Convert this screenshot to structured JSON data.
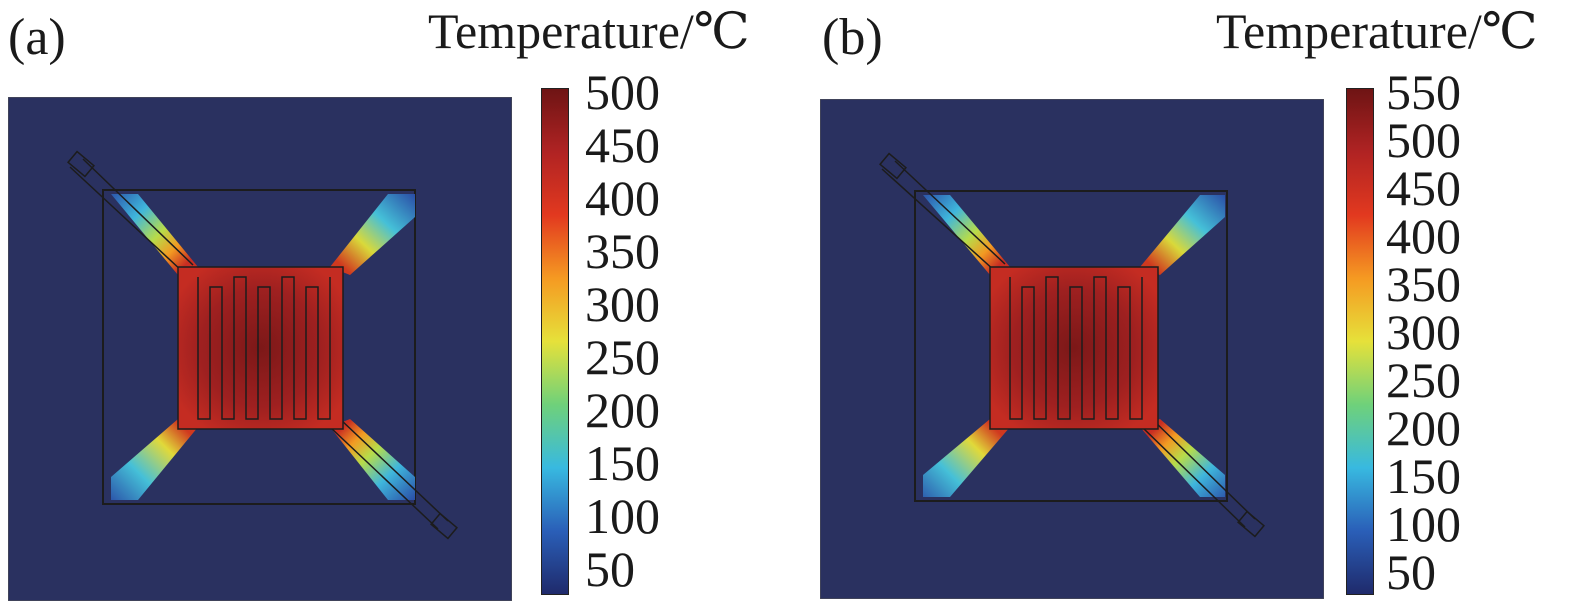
{
  "panels": [
    {
      "label": "(a)",
      "colorbar_title": "Temperature/℃",
      "colorbar_ticks": [
        "500",
        "450",
        "400",
        "350",
        "300",
        "250",
        "200",
        "150",
        "100",
        "50"
      ],
      "range": [
        30,
        510
      ]
    },
    {
      "label": "(b)",
      "colorbar_title": "Temperature/℃",
      "colorbar_ticks": [
        "550",
        "500",
        "450",
        "400",
        "350",
        "300",
        "250",
        "200",
        "150",
        "100",
        "50"
      ],
      "range": [
        30,
        560
      ]
    }
  ],
  "colors": {
    "background": "#2a3160",
    "hot": "#c02a23",
    "core": "#8a1d1d",
    "outline": "#1c1c1c"
  },
  "colormap": [
    "#1f2a6b",
    "#2a5fb8",
    "#38b9e0",
    "#6fd17a",
    "#e6e13a",
    "#f59a22",
    "#e2391f",
    "#b02323",
    "#6e1414"
  ]
}
